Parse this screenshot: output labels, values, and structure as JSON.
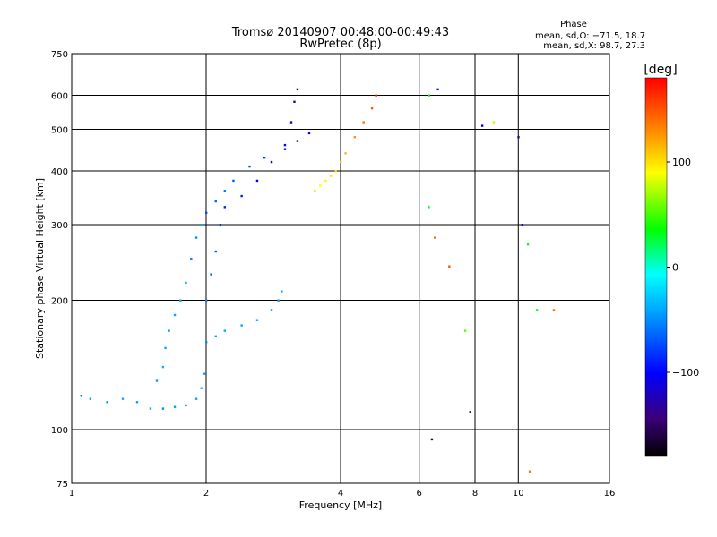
{
  "chart_data": {
    "type": "scatter",
    "title": "Tromsø 20140907 00:48:00-00:49:43",
    "subtitle": "RwPretec (8p)",
    "xlabel": "Frequency [MHz]",
    "ylabel": "Stationary phase Virtual Height [km]",
    "x_scale": "log",
    "y_scale": "log",
    "xlim": [
      1,
      16
    ],
    "ylim": [
      75,
      750
    ],
    "x_ticks": [
      1,
      2,
      4,
      6,
      8,
      10,
      16
    ],
    "x_tick_labels": [
      "1",
      "2",
      "4",
      "6",
      "8",
      "10",
      "16"
    ],
    "y_ticks": [
      75,
      100,
      200,
      300,
      400,
      500,
      600,
      750
    ],
    "y_tick_labels": [
      "75",
      "100",
      "200",
      "300",
      "400",
      "500",
      "600",
      "750"
    ],
    "grid": true,
    "stats": {
      "heading": "Phase",
      "line1": "mean, sd,O: −71.5, 18.7",
      "line2": "mean, sd,X:  98.7, 27.3"
    },
    "colorbar": {
      "label": "[deg]",
      "range": [
        -180,
        180
      ],
      "ticks": [
        100,
        0,
        -100
      ],
      "tick_labels": [
        "100",
        "0",
        "−100"
      ],
      "colors": [
        "#000000",
        "#3b0078",
        "#0000ff",
        "#00a0ff",
        "#00ffff",
        "#00ff00",
        "#ffff00",
        "#ff8000",
        "#ff0000"
      ]
    },
    "clusters": [
      {
        "name": "lower-trace",
        "points": [
          [
            1.05,
            120,
            -60
          ],
          [
            1.1,
            118,
            -40
          ],
          [
            1.2,
            116,
            -50
          ],
          [
            1.3,
            118,
            -35
          ],
          [
            1.4,
            116,
            -45
          ],
          [
            1.5,
            112,
            -40
          ],
          [
            1.6,
            112,
            -50
          ],
          [
            1.7,
            113,
            -45
          ],
          [
            1.8,
            114,
            -55
          ],
          [
            1.9,
            118,
            -40
          ],
          [
            1.95,
            125,
            -35
          ],
          [
            1.98,
            135,
            -40
          ]
        ]
      },
      {
        "name": "lower-rise",
        "points": [
          [
            1.55,
            130,
            -45
          ],
          [
            1.6,
            140,
            -35
          ],
          [
            1.62,
            155,
            -40
          ],
          [
            1.65,
            170,
            -45
          ],
          [
            1.7,
            185,
            -40
          ],
          [
            1.75,
            200,
            -40
          ],
          [
            1.8,
            220,
            -45
          ],
          [
            1.85,
            250,
            -55
          ],
          [
            1.9,
            280,
            -50
          ],
          [
            1.95,
            300,
            -40
          ],
          [
            2.0,
            320,
            -70
          ],
          [
            2.1,
            340,
            -60
          ],
          [
            2.2,
            360,
            -55
          ],
          [
            2.3,
            380,
            -65
          ],
          [
            2.5,
            410,
            -70
          ],
          [
            2.7,
            430,
            -75
          ],
          [
            3.0,
            450,
            -85
          ],
          [
            3.2,
            470,
            -95
          ],
          [
            3.4,
            490,
            -100
          ]
        ]
      },
      {
        "name": "e-layer-band",
        "points": [
          [
            2.0,
            160,
            -50
          ],
          [
            2.1,
            165,
            -45
          ],
          [
            2.2,
            170,
            -40
          ],
          [
            2.4,
            175,
            -45
          ],
          [
            2.6,
            180,
            -40
          ],
          [
            2.8,
            190,
            -45
          ],
          [
            2.9,
            200,
            -45
          ],
          [
            2.95,
            210,
            -40
          ]
        ]
      },
      {
        "name": "f-layer-o",
        "points": [
          [
            2.0,
            200,
            -55
          ],
          [
            2.05,
            230,
            -60
          ],
          [
            2.1,
            260,
            -65
          ],
          [
            2.15,
            300,
            -75
          ],
          [
            2.2,
            330,
            -80
          ],
          [
            2.4,
            350,
            -85
          ],
          [
            2.6,
            380,
            -90
          ],
          [
            2.8,
            420,
            -95
          ],
          [
            3.0,
            460,
            -100
          ],
          [
            3.1,
            520,
            -110
          ],
          [
            3.15,
            580,
            -120
          ],
          [
            3.2,
            620,
            -115
          ]
        ]
      },
      {
        "name": "f-layer-x",
        "points": [
          [
            3.5,
            360,
            80
          ],
          [
            3.6,
            370,
            90
          ],
          [
            3.7,
            380,
            95
          ],
          [
            3.8,
            390,
            100
          ],
          [
            3.9,
            400,
            105
          ],
          [
            4.0,
            420,
            110
          ],
          [
            4.1,
            440,
            115
          ],
          [
            4.3,
            480,
            130
          ],
          [
            4.5,
            520,
            140
          ],
          [
            4.7,
            560,
            150
          ],
          [
            4.8,
            600,
            160
          ]
        ]
      },
      {
        "name": "scattered-high",
        "points": [
          [
            6.3,
            600,
            40
          ],
          [
            6.6,
            620,
            -80
          ],
          [
            8.3,
            510,
            -90
          ],
          [
            8.8,
            520,
            80
          ],
          [
            10.0,
            480,
            -120
          ],
          [
            10.2,
            300,
            -100
          ],
          [
            6.3,
            330,
            40
          ],
          [
            6.5,
            280,
            140
          ],
          [
            7.0,
            240,
            150
          ],
          [
            7.6,
            170,
            60
          ],
          [
            7.8,
            110,
            -140
          ],
          [
            10.5,
            270,
            40
          ],
          [
            11.0,
            190,
            40
          ],
          [
            12.0,
            190,
            140
          ],
          [
            10.6,
            80,
            140
          ],
          [
            6.4,
            95,
            -150
          ]
        ]
      }
    ]
  }
}
